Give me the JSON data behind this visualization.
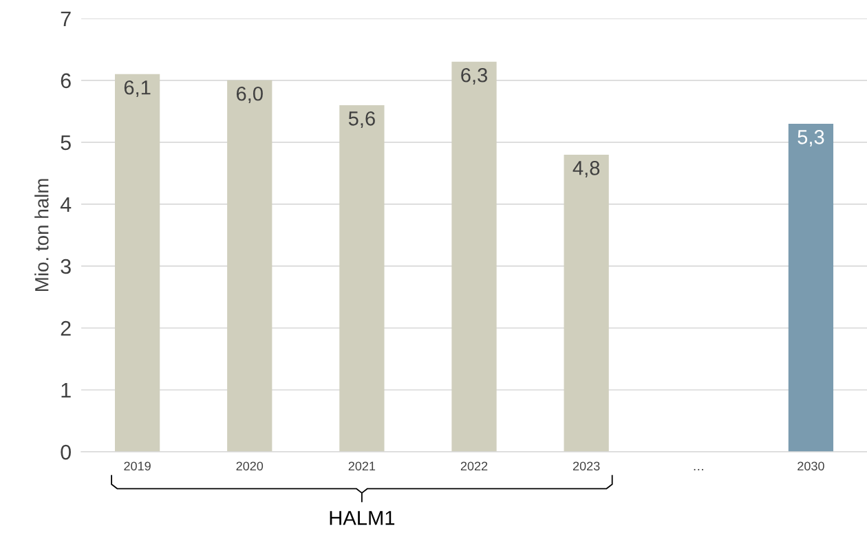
{
  "chart_data": {
    "type": "bar",
    "categories": [
      "2019",
      "2020",
      "2021",
      "2022",
      "2023",
      "…",
      "2030"
    ],
    "values": [
      6.1,
      6.0,
      5.6,
      6.3,
      4.8,
      null,
      5.3
    ],
    "value_labels": [
      "6,1",
      "6,0",
      "5,6",
      "6,3",
      "4,8",
      null,
      "5,3"
    ],
    "colors": [
      "#d0cfbd",
      "#d0cfbd",
      "#d0cfbd",
      "#d0cfbd",
      "#d0cfbd",
      "#d0cfbd",
      "#7a9baf"
    ],
    "ylabel": "Mio. ton halm",
    "ylim": [
      0,
      7
    ],
    "yticks": [
      0,
      1,
      2,
      3,
      4,
      5,
      6,
      7
    ],
    "grid": "y",
    "annotations": [
      "HALM1"
    ]
  }
}
